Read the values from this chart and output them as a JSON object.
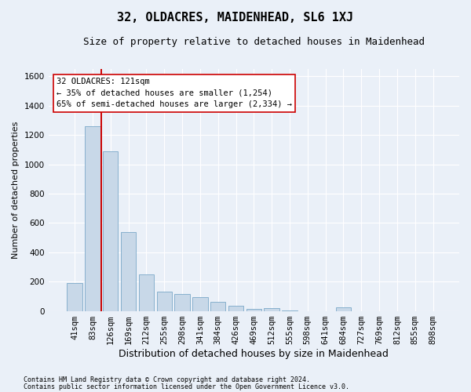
{
  "title": "32, OLDACRES, MAIDENHEAD, SL6 1XJ",
  "subtitle": "Size of property relative to detached houses in Maidenhead",
  "xlabel": "Distribution of detached houses by size in Maidenhead",
  "ylabel": "Number of detached properties",
  "footer_line1": "Contains HM Land Registry data © Crown copyright and database right 2024.",
  "footer_line2": "Contains public sector information licensed under the Open Government Licence v3.0.",
  "annotation_title": "32 OLDACRES: 121sqm",
  "annotation_line1": "← 35% of detached houses are smaller (1,254)",
  "annotation_line2": "65% of semi-detached houses are larger (2,334) →",
  "bar_color": "#c8d8e8",
  "bar_edge_color": "#7aa8c8",
  "vline_color": "#cc0000",
  "vline_x": 1.5,
  "categories": [
    "41sqm",
    "83sqm",
    "126sqm",
    "169sqm",
    "212sqm",
    "255sqm",
    "298sqm",
    "341sqm",
    "384sqm",
    "426sqm",
    "469sqm",
    "512sqm",
    "555sqm",
    "598sqm",
    "641sqm",
    "684sqm",
    "727sqm",
    "769sqm",
    "812sqm",
    "855sqm",
    "898sqm"
  ],
  "values": [
    190,
    1260,
    1090,
    540,
    250,
    130,
    115,
    95,
    60,
    35,
    15,
    20,
    5,
    0,
    0,
    25,
    0,
    0,
    0,
    0,
    0
  ],
  "ylim": [
    0,
    1650
  ],
  "yticks": [
    0,
    200,
    400,
    600,
    800,
    1000,
    1200,
    1400,
    1600
  ],
  "background_color": "#eaf0f8",
  "annotation_box_facecolor": "white",
  "annotation_box_edgecolor": "#cc0000",
  "grid_color": "white",
  "title_fontsize": 11,
  "subtitle_fontsize": 9,
  "ylabel_fontsize": 8,
  "xlabel_fontsize": 9,
  "tick_fontsize": 7.5,
  "annotation_fontsize": 7.5,
  "footer_fontsize": 6
}
